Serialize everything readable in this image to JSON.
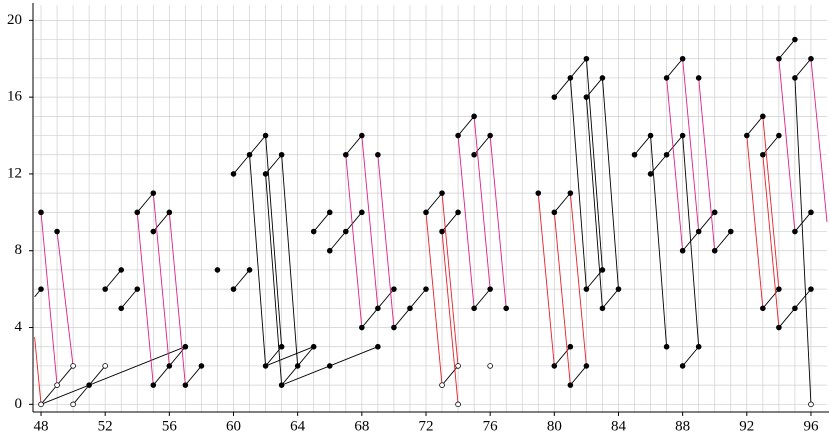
{
  "chart_data": {
    "type": "scatter",
    "xlim": [
      47.5,
      97
    ],
    "ylim": [
      -0.4,
      20.8
    ],
    "xticks": [
      48,
      52,
      56,
      60,
      64,
      68,
      72,
      76,
      80,
      84,
      88,
      92,
      96
    ],
    "yticks": [
      0,
      4,
      8,
      12,
      16,
      20
    ],
    "grid": true,
    "xminor": [
      48,
      49,
      50,
      51,
      52,
      53,
      54,
      55,
      56,
      57,
      58,
      59,
      60,
      61,
      62,
      63,
      64,
      65,
      66,
      67,
      68,
      69,
      70,
      71,
      72,
      73,
      74,
      75,
      76,
      77,
      78,
      79,
      80,
      81,
      82,
      83,
      84,
      85,
      86,
      87,
      88,
      89,
      90,
      91,
      92,
      93,
      94,
      95,
      96
    ],
    "yminor": [
      0,
      1,
      2,
      3,
      4,
      5,
      6,
      7,
      8,
      9,
      10,
      11,
      12,
      13,
      14,
      15,
      16,
      17,
      18,
      19,
      20
    ],
    "points": [
      {
        "color": "#000000",
        "filled": true,
        "x": [
          48,
          48,
          49,
          51,
          52,
          53,
          53,
          54,
          54,
          55,
          55,
          56,
          55,
          56,
          57,
          57,
          58,
          59,
          60,
          61,
          60,
          61,
          62,
          62,
          63,
          62,
          63,
          63,
          64,
          65,
          65,
          66,
          66,
          67,
          68,
          66,
          69,
          67,
          68,
          69,
          68,
          69,
          70,
          70,
          71,
          72,
          72,
          73,
          73,
          74,
          74,
          75,
          75,
          76,
          75,
          76,
          77,
          79,
          80,
          81,
          80,
          81,
          81,
          82,
          80,
          81,
          82,
          82,
          83,
          82,
          83,
          83,
          84,
          85,
          86,
          86,
          87,
          88,
          87,
          88,
          89,
          87,
          88,
          89,
          88,
          89,
          90,
          90,
          91,
          92,
          93,
          93,
          94,
          93,
          94,
          94,
          95,
          95,
          96,
          95,
          96,
          94,
          95,
          96
        ],
        "values": [
          6,
          10,
          9,
          1,
          6,
          7,
          5,
          6,
          10,
          11,
          9,
          10,
          1,
          2,
          3,
          1,
          2,
          7,
          6,
          7,
          12,
          13,
          14,
          12,
          13,
          2,
          3,
          1,
          2,
          3,
          9,
          10,
          8,
          9,
          10,
          2,
          3,
          13,
          14,
          13,
          4,
          5,
          6,
          4,
          5,
          6,
          10,
          11,
          9,
          10,
          14,
          15,
          13,
          14,
          5,
          6,
          5,
          11,
          10,
          11,
          2,
          3,
          1,
          2,
          16,
          17,
          18,
          16,
          17,
          6,
          7,
          5,
          6,
          13,
          14,
          12,
          13,
          14,
          17,
          18,
          17,
          3,
          2,
          3,
          8,
          9,
          10,
          8,
          9,
          14,
          15,
          13,
          14,
          5,
          6,
          18,
          19,
          17,
          18,
          9,
          10,
          4,
          5,
          6
        ]
      },
      {
        "color": "#000000",
        "filled": false,
        "x": [
          48,
          49,
          50,
          50,
          52,
          73,
          74,
          74,
          76,
          96
        ],
        "values": [
          0,
          1,
          2,
          0,
          2,
          1,
          2,
          0,
          2,
          0
        ]
      }
    ],
    "segments": [
      {
        "color": "#000000",
        "lines": [
          [
            47.6,
            5.6,
            48,
            6
          ],
          [
            48,
            0,
            49,
            1
          ],
          [
            49,
            1,
            50,
            2
          ],
          [
            50,
            0,
            51,
            1
          ],
          [
            51,
            1,
            52,
            2
          ],
          [
            48,
            0,
            57,
            3
          ],
          [
            52,
            6,
            53,
            7
          ],
          [
            53,
            5,
            54,
            6
          ],
          [
            54,
            10,
            55,
            11
          ],
          [
            55,
            9,
            56,
            10
          ],
          [
            55,
            1,
            56,
            2
          ],
          [
            56,
            2,
            57,
            3
          ],
          [
            57,
            1,
            58,
            2
          ],
          [
            60,
            6,
            61,
            7
          ],
          [
            60,
            12,
            61,
            13
          ],
          [
            61,
            13,
            62,
            14
          ],
          [
            62,
            12,
            63,
            13
          ],
          [
            61,
            13,
            62,
            2
          ],
          [
            62,
            14,
            63,
            3
          ],
          [
            62,
            12,
            63,
            1
          ],
          [
            63,
            13,
            64,
            2
          ],
          [
            62,
            2,
            63,
            3
          ],
          [
            63,
            1,
            64,
            2
          ],
          [
            64,
            2,
            65,
            3
          ],
          [
            62,
            2,
            65,
            3
          ],
          [
            63,
            1,
            69,
            3
          ],
          [
            65,
            9,
            66,
            10
          ],
          [
            66,
            8,
            67,
            9
          ],
          [
            67,
            9,
            68,
            10
          ],
          [
            67,
            13,
            68,
            14
          ],
          [
            68,
            4,
            69,
            5
          ],
          [
            69,
            5,
            70,
            6
          ],
          [
            70,
            4,
            71,
            5
          ],
          [
            71,
            5,
            72,
            6
          ],
          [
            72,
            10,
            73,
            11
          ],
          [
            73,
            9,
            74,
            10
          ],
          [
            74,
            14,
            75,
            15
          ],
          [
            75,
            13,
            76,
            14
          ],
          [
            75,
            5,
            76,
            6
          ],
          [
            73,
            1,
            74,
            2
          ],
          [
            80,
            10,
            81,
            11
          ],
          [
            80,
            2,
            81,
            3
          ],
          [
            81,
            1,
            82,
            2
          ],
          [
            80,
            16,
            81,
            17
          ],
          [
            81,
            17,
            82,
            18
          ],
          [
            82,
            16,
            83,
            17
          ],
          [
            81,
            17,
            82,
            6
          ],
          [
            82,
            18,
            83,
            7
          ],
          [
            82,
            16,
            83,
            5
          ],
          [
            83,
            17,
            84,
            6
          ],
          [
            82,
            6,
            83,
            7
          ],
          [
            83,
            5,
            84,
            6
          ],
          [
            85,
            13,
            86,
            14
          ],
          [
            86,
            12,
            87,
            13
          ],
          [
            87,
            13,
            88,
            14
          ],
          [
            86,
            14,
            87,
            3
          ],
          [
            88,
            14,
            89,
            3
          ],
          [
            88,
            2,
            89,
            3
          ],
          [
            88,
            8,
            89,
            9
          ],
          [
            89,
            9,
            90,
            10
          ],
          [
            90,
            8,
            91,
            9
          ],
          [
            87,
            17,
            88,
            18
          ],
          [
            92,
            14,
            93,
            15
          ],
          [
            93,
            13,
            94,
            14
          ],
          [
            94,
            18,
            95,
            19
          ],
          [
            95,
            17,
            96,
            18
          ],
          [
            93,
            5,
            94,
            6
          ],
          [
            94,
            4,
            95,
            5
          ],
          [
            95,
            5,
            96,
            6
          ],
          [
            95,
            9,
            96,
            10
          ],
          [
            95,
            17,
            96,
            0
          ]
        ]
      },
      {
        "color": "#e8202a",
        "lines": [
          [
            47.6,
            3.5,
            48,
            0
          ],
          [
            72,
            10,
            73,
            1
          ],
          [
            73,
            11,
            74,
            2
          ],
          [
            73,
            9,
            74,
            0
          ],
          [
            79,
            11,
            80,
            2
          ],
          [
            80,
            10,
            81,
            1
          ],
          [
            81,
            11,
            82,
            2
          ],
          [
            92,
            14,
            93,
            5
          ],
          [
            93,
            15,
            94,
            6
          ],
          [
            93,
            13,
            94,
            4
          ]
        ]
      },
      {
        "color": "#e0208a",
        "lines": [
          [
            48,
            10,
            49,
            1
          ],
          [
            49,
            9,
            50,
            2
          ],
          [
            54,
            10,
            55,
            1
          ],
          [
            55,
            11,
            56,
            2
          ],
          [
            56,
            10,
            57,
            1
          ],
          [
            67,
            13,
            68,
            4
          ],
          [
            68,
            14,
            69,
            5
          ],
          [
            69,
            13,
            70,
            4
          ],
          [
            74,
            14,
            75,
            5
          ],
          [
            75,
            15,
            76,
            6
          ],
          [
            76,
            14,
            77,
            5
          ],
          [
            87,
            17,
            88,
            8
          ],
          [
            88,
            18,
            89,
            9
          ],
          [
            89,
            17,
            90,
            8
          ],
          [
            94,
            18,
            95,
            9
          ],
          [
            96,
            18,
            97,
            9.5
          ]
        ]
      }
    ]
  }
}
